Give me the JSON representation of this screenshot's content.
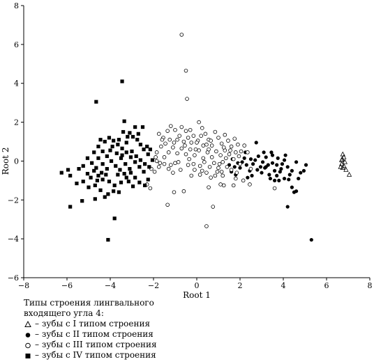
{
  "chart_data": {
    "type": "scatter",
    "xlabel": "Root 1",
    "ylabel": "Root 2",
    "xlim": [
      -8,
      8
    ],
    "ylim": [
      -6,
      8
    ],
    "xticks": [
      -8,
      -6,
      -4,
      -2,
      0,
      2,
      4,
      6,
      8
    ],
    "yticks": [
      -6,
      -4,
      -2,
      0,
      2,
      4,
      6,
      8
    ],
    "grid": false,
    "series": [
      {
        "name": "– зубы с I типом строения",
        "marker": "triangle-open",
        "points": [
          [
            6.75,
            0.35
          ],
          [
            6.8,
            0.2
          ],
          [
            6.7,
            0.05
          ],
          [
            6.85,
            -0.05
          ],
          [
            6.7,
            -0.15
          ],
          [
            6.8,
            -0.25
          ],
          [
            6.75,
            -0.35
          ],
          [
            6.9,
            -0.45
          ],
          [
            7.05,
            -0.7
          ],
          [
            6.65,
            -0.3
          ],
          [
            6.72,
            0.1
          ]
        ]
      },
      {
        "name": "– зубы с II типом строения",
        "marker": "circle-filled",
        "points": [
          [
            5.3,
            -4.05
          ],
          [
            4.2,
            -2.35
          ],
          [
            4.6,
            -1.55
          ],
          [
            4.5,
            -1.6
          ],
          [
            4.8,
            -0.6
          ],
          [
            4.4,
            -0.5
          ],
          [
            4.2,
            -0.3
          ],
          [
            4.05,
            0.05
          ],
          [
            4.1,
            0.3
          ],
          [
            4.05,
            -0.9
          ],
          [
            3.8,
            -1.0
          ],
          [
            3.9,
            -0.4
          ],
          [
            3.6,
            -0.5
          ],
          [
            3.5,
            -0.1
          ],
          [
            3.3,
            -0.2
          ],
          [
            3.2,
            -0.3
          ],
          [
            3.0,
            -0.6
          ],
          [
            3.4,
            -0.9
          ],
          [
            3.6,
            -1.0
          ],
          [
            3.35,
            -0.7
          ],
          [
            3.7,
            -0.2
          ],
          [
            3.75,
            0.15
          ],
          [
            3.5,
            0.3
          ],
          [
            3.2,
            0.2
          ],
          [
            3.05,
            -0.05
          ],
          [
            2.85,
            0.25
          ],
          [
            2.75,
            0.95
          ],
          [
            2.8,
            -0.45
          ],
          [
            2.55,
            -0.75
          ],
          [
            2.45,
            -0.5
          ],
          [
            2.35,
            -0.85
          ],
          [
            2.2,
            0.15
          ],
          [
            2.3,
            -0.2
          ],
          [
            2.5,
            0.1
          ],
          [
            2.6,
            -0.15
          ],
          [
            2.7,
            0.05
          ],
          [
            2.1,
            -0.05
          ],
          [
            2.0,
            -0.35
          ],
          [
            1.8,
            -0.7
          ],
          [
            1.9,
            -0.1
          ],
          [
            1.75,
            -0.3
          ],
          [
            1.6,
            -0.55
          ],
          [
            1.5,
            -0.2
          ],
          [
            1.65,
            0.1
          ],
          [
            2.95,
            -0.3
          ],
          [
            3.1,
            0.45
          ],
          [
            4.3,
            -0.7
          ],
          [
            4.7,
            -0.9
          ],
          [
            4.4,
            -1.35
          ],
          [
            4.25,
            -0.95
          ],
          [
            3.85,
            -0.55
          ],
          [
            3.45,
            0.45
          ],
          [
            3.15,
            -0.35
          ],
          [
            2.25,
            0.45
          ],
          [
            4.95,
            -0.5
          ],
          [
            5.05,
            -0.2
          ],
          [
            4.6,
            -0.05
          ],
          [
            3.95,
            -0.15
          ],
          [
            3.7,
            -0.75
          ]
        ]
      },
      {
        "name": "– зубы с III типом строения",
        "marker": "circle-open",
        "points": [
          [
            -0.7,
            6.5
          ],
          [
            -0.5,
            4.65
          ],
          [
            -0.45,
            3.2
          ],
          [
            0.45,
            -3.35
          ],
          [
            -1.35,
            -2.25
          ],
          [
            0.75,
            -2.35
          ],
          [
            -1.05,
            -1.6
          ],
          [
            -0.6,
            -1.55
          ],
          [
            0.55,
            -1.35
          ],
          [
            1.25,
            -1.25
          ],
          [
            1.7,
            -1.25
          ],
          [
            3.6,
            -1.4
          ],
          [
            2.45,
            -1.2
          ],
          [
            2.15,
            -1.0
          ],
          [
            1.85,
            -0.6
          ],
          [
            1.2,
            -0.75
          ],
          [
            1.1,
            -1.2
          ],
          [
            0.95,
            -0.55
          ],
          [
            0.65,
            -0.85
          ],
          [
            0.45,
            -0.6
          ],
          [
            0.25,
            -0.5
          ],
          [
            -0.1,
            -0.45
          ],
          [
            -0.4,
            -0.2
          ],
          [
            -0.75,
            -0.45
          ],
          [
            -1.1,
            -0.6
          ],
          [
            -1.3,
            -0.4
          ],
          [
            -1.2,
            -0.2
          ],
          [
            -1.5,
            -0.15
          ],
          [
            -1.75,
            -0.3
          ],
          [
            -1.85,
            0.0
          ],
          [
            -1.95,
            -0.55
          ],
          [
            -2.15,
            -1.4
          ],
          [
            -1.85,
            0.45
          ],
          [
            -1.65,
            0.75
          ],
          [
            -1.55,
            1.2
          ],
          [
            -1.45,
            0.9
          ],
          [
            -1.75,
            1.4
          ],
          [
            -1.6,
            1.1
          ],
          [
            -1.35,
            1.55
          ],
          [
            -1.2,
            1.8
          ],
          [
            -1.0,
            1.6
          ],
          [
            -0.9,
            1.1
          ],
          [
            -0.7,
            1.75
          ],
          [
            -0.5,
            1.55
          ],
          [
            -0.4,
            1.2
          ],
          [
            -0.25,
            0.95
          ],
          [
            -0.15,
            1.3
          ],
          [
            0.05,
            1.05
          ],
          [
            0.1,
            2.0
          ],
          [
            0.25,
            1.7
          ],
          [
            0.4,
            1.4
          ],
          [
            0.55,
            1.1
          ],
          [
            0.7,
            0.8
          ],
          [
            0.85,
            1.5
          ],
          [
            1.0,
            1.2
          ],
          [
            1.15,
            0.9
          ],
          [
            1.3,
            1.35
          ],
          [
            1.45,
            1.05
          ],
          [
            1.6,
            0.75
          ],
          [
            1.75,
            1.15
          ],
          [
            1.9,
            0.85
          ],
          [
            2.05,
            0.5
          ],
          [
            2.2,
            0.8
          ],
          [
            2.35,
            0.45
          ],
          [
            1.95,
            0.25
          ],
          [
            1.7,
            0.1
          ],
          [
            1.5,
            0.35
          ],
          [
            1.3,
            0.55
          ],
          [
            1.1,
            0.3
          ],
          [
            0.9,
            0.5
          ],
          [
            0.7,
            0.2
          ],
          [
            0.5,
            0.45
          ],
          [
            0.3,
            0.15
          ],
          [
            0.1,
            0.55
          ],
          [
            -0.1,
            0.3
          ],
          [
            -0.3,
            0.6
          ],
          [
            -0.5,
            0.35
          ],
          [
            -0.7,
            0.65
          ],
          [
            -0.9,
            0.4
          ],
          [
            -1.1,
            0.7
          ],
          [
            -1.3,
            0.45
          ],
          [
            -1.5,
            0.2
          ],
          [
            -1.7,
            -0.1
          ],
          [
            -1.9,
            0.2
          ],
          [
            -2.1,
            -0.4
          ],
          [
            -0.15,
            -0.15
          ],
          [
            0.15,
            -0.25
          ],
          [
            0.35,
            -0.05
          ],
          [
            0.6,
            -0.3
          ],
          [
            0.8,
            -0.1
          ],
          [
            1.0,
            -0.35
          ],
          [
            1.2,
            -0.05
          ],
          [
            1.4,
            -0.3
          ],
          [
            1.6,
            -0.45
          ],
          [
            1.8,
            0.45
          ],
          [
            2.0,
            -0.15
          ],
          [
            0.0,
            0.95
          ],
          [
            -0.6,
            1.0
          ],
          [
            -0.8,
            1.3
          ],
          [
            0.2,
            1.3
          ],
          [
            0.45,
            0.85
          ],
          [
            0.65,
            1.05
          ],
          [
            1.25,
            0.7
          ],
          [
            1.55,
            0.55
          ],
          [
            -1.0,
            -0.1
          ],
          [
            -0.25,
            -0.75
          ],
          [
            0.85,
            -0.75
          ],
          [
            1.05,
            -0.15
          ],
          [
            -2.3,
            -1.2
          ],
          [
            -0.85,
            -0.05
          ],
          [
            0.3,
            0.8
          ],
          [
            -0.35,
            0.1
          ],
          [
            1.35,
            0.15
          ],
          [
            0.55,
            0.6
          ],
          [
            -0.05,
            0.6
          ],
          [
            -0.55,
            0.8
          ],
          [
            -1.25,
            1.1
          ],
          [
            -1.05,
            0.95
          ],
          [
            -0.3,
            1.6
          ],
          [
            0.15,
            -0.7
          ],
          [
            1.15,
            -0.55
          ],
          [
            1.8,
            -0.9
          ],
          [
            2.5,
            -0.4
          ]
        ]
      },
      {
        "name": "– зубы с IV типом строения",
        "marker": "square-filled",
        "points": [
          [
            -3.45,
            4.1
          ],
          [
            -4.65,
            3.05
          ],
          [
            -4.1,
            -4.05
          ],
          [
            -3.8,
            -2.95
          ],
          [
            -5.85,
            -2.35
          ],
          [
            -5.3,
            -2.05
          ],
          [
            -4.7,
            -1.95
          ],
          [
            -4.25,
            -1.85
          ],
          [
            -4.45,
            -1.5
          ],
          [
            -4.7,
            -1.25
          ],
          [
            -5.0,
            -1.35
          ],
          [
            -5.25,
            -1.05
          ],
          [
            -5.55,
            -1.15
          ],
          [
            -5.85,
            -0.75
          ],
          [
            -6.25,
            -0.6
          ],
          [
            -5.95,
            -0.45
          ],
          [
            -5.05,
            -0.65
          ],
          [
            -4.75,
            -0.5
          ],
          [
            -4.55,
            -0.75
          ],
          [
            -4.35,
            -0.95
          ],
          [
            -4.05,
            -1.05
          ],
          [
            -3.8,
            -1.25
          ],
          [
            -3.5,
            -1.1
          ],
          [
            -3.25,
            -0.85
          ],
          [
            -3.05,
            -0.6
          ],
          [
            -2.85,
            -0.85
          ],
          [
            -2.65,
            -1.1
          ],
          [
            -2.4,
            -1.25
          ],
          [
            -2.25,
            -0.95
          ],
          [
            -2.45,
            -0.55
          ],
          [
            -2.65,
            -0.3
          ],
          [
            -2.85,
            -0.05
          ],
          [
            -3.05,
            0.2
          ],
          [
            -3.25,
            0.45
          ],
          [
            -3.45,
            0.65
          ],
          [
            -3.65,
            0.85
          ],
          [
            -3.85,
            1.05
          ],
          [
            -4.05,
            1.2
          ],
          [
            -3.9,
            0.75
          ],
          [
            -3.7,
            0.4
          ],
          [
            -3.5,
            0.15
          ],
          [
            -3.3,
            -0.15
          ],
          [
            -3.1,
            -0.4
          ],
          [
            -3.35,
            -0.65
          ],
          [
            -3.55,
            -0.45
          ],
          [
            -3.75,
            -0.25
          ],
          [
            -3.95,
            0.0
          ],
          [
            -4.15,
            0.25
          ],
          [
            -4.35,
            0.5
          ],
          [
            -4.55,
            0.75
          ],
          [
            -4.75,
            0.45
          ],
          [
            -4.55,
            0.15
          ],
          [
            -4.35,
            -0.15
          ],
          [
            -4.15,
            -0.4
          ],
          [
            -4.4,
            -0.6
          ],
          [
            -4.65,
            -0.35
          ],
          [
            -4.85,
            -0.1
          ],
          [
            -5.05,
            0.15
          ],
          [
            -5.25,
            -0.25
          ],
          [
            -3.4,
            1.5
          ],
          [
            -3.35,
            2.05
          ],
          [
            -3.1,
            1.45
          ],
          [
            -2.95,
            1.25
          ],
          [
            -2.75,
            1.1
          ],
          [
            -2.6,
            0.85
          ],
          [
            -2.45,
            0.6
          ],
          [
            -2.25,
            0.35
          ],
          [
            -2.05,
            0.05
          ],
          [
            -2.2,
            -0.3
          ],
          [
            -2.7,
            1.4
          ],
          [
            -2.5,
            1.75
          ],
          [
            -2.85,
            1.75
          ],
          [
            -3.2,
            1.25
          ],
          [
            -3.6,
            1.1
          ],
          [
            -4.25,
            1.0
          ],
          [
            -4.45,
            1.1
          ],
          [
            -3.0,
            0.5
          ],
          [
            -2.8,
            0.25
          ],
          [
            -2.6,
            0.05
          ],
          [
            -2.4,
            -0.15
          ],
          [
            -3.65,
            -0.7
          ],
          [
            -3.15,
            -1.05
          ],
          [
            -2.95,
            -1.3
          ],
          [
            -3.85,
            -1.55
          ],
          [
            -4.1,
            -1.7
          ],
          [
            -4.6,
            -1.0
          ],
          [
            -4.9,
            -0.85
          ],
          [
            -5.45,
            -0.4
          ],
          [
            -3.25,
            0.95
          ],
          [
            -3.45,
            0.3
          ],
          [
            -2.3,
            0.75
          ],
          [
            -2.15,
            0.6
          ],
          [
            -4.0,
            0.55
          ],
          [
            -4.2,
            -0.7
          ],
          [
            -3.6,
            -1.6
          ]
        ]
      }
    ],
    "legend": {
      "title_lines": [
        "Типы строения лингвального",
        "входящего угла 4:"
      ],
      "placement": "bottom-left, below the plot"
    }
  }
}
